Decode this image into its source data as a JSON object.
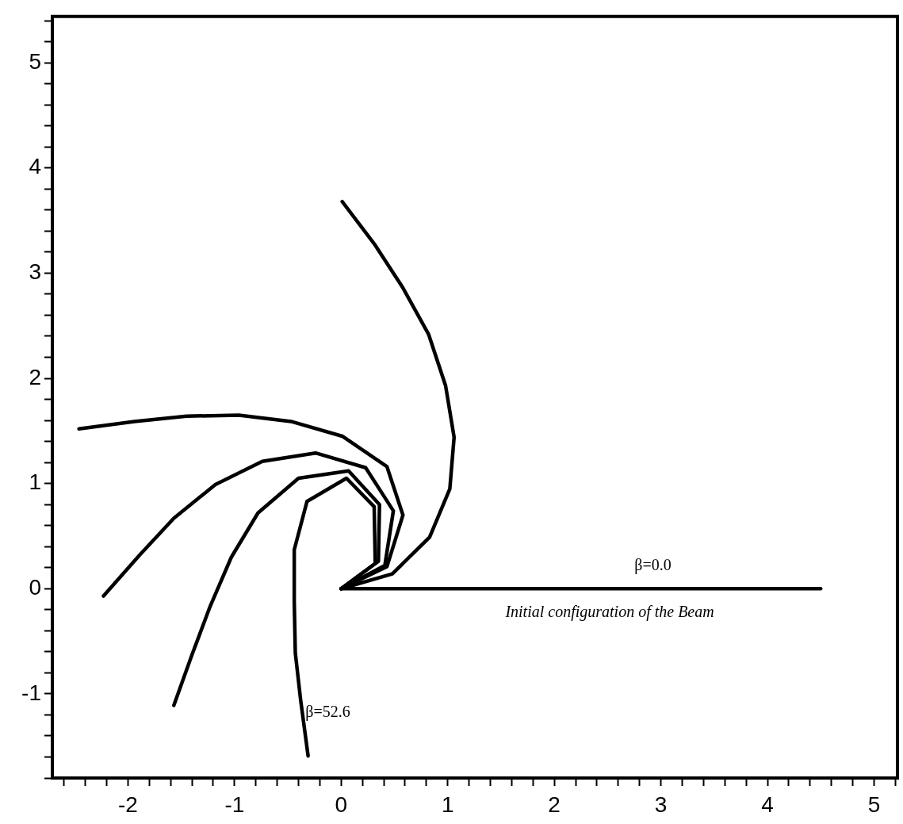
{
  "chart_data": {
    "type": "line",
    "series": [
      {
        "color": "#000000",
        "x": [
          0,
          4.5
        ],
        "values": [
          0,
          0
        ]
      },
      {
        "color": "#000000",
        "x": [
          0,
          0.48,
          0.83,
          1.02,
          1.06,
          0.98,
          0.82,
          0.58,
          0.31,
          0.01
        ],
        "values": [
          0,
          0.14,
          0.49,
          0.95,
          1.44,
          1.93,
          2.42,
          2.86,
          3.28,
          3.68
        ]
      },
      {
        "color": "#000000",
        "x": [
          0,
          0.43,
          0.58,
          0.43,
          0.01,
          -0.47,
          -0.96,
          -1.45,
          -1.94,
          -2.46
        ],
        "values": [
          0,
          0.21,
          0.7,
          1.16,
          1.45,
          1.59,
          1.65,
          1.64,
          1.59,
          1.52
        ]
      },
      {
        "color": "#000000",
        "x": [
          0,
          0.41,
          0.49,
          0.23,
          -0.24,
          -0.74,
          -1.18,
          -1.57,
          -1.89,
          -2.23
        ],
        "values": [
          0,
          0.22,
          0.74,
          1.15,
          1.29,
          1.21,
          0.99,
          0.67,
          0.32,
          -0.07
        ]
      },
      {
        "color": "#000000",
        "x": [
          0,
          0.35,
          0.36,
          0.07,
          -0.4,
          -0.78,
          -1.03,
          -1.23,
          -1.4,
          -1.57
        ],
        "values": [
          0,
          0.26,
          0.8,
          1.12,
          1.05,
          0.72,
          0.3,
          -0.17,
          -0.63,
          -1.11
        ]
      },
      {
        "color": "#000000",
        "x": [
          0,
          0.32,
          0.31,
          0.05,
          -0.32,
          -0.44,
          -0.44,
          -0.43,
          -0.38,
          -0.31
        ],
        "values": [
          0,
          0.24,
          0.78,
          1.05,
          0.83,
          0.37,
          -0.12,
          -0.61,
          -1.06,
          -1.59
        ]
      }
    ],
    "xlim": [
      -2.71,
      5.22
    ],
    "ylim": [
      -1.8,
      5.44
    ],
    "xticks": [
      {
        "value": -2.6,
        "label": null
      },
      {
        "value": -2.4,
        "label": null
      },
      {
        "value": -2.2,
        "label": null
      },
      -2,
      {
        "value": -1.8,
        "label": null
      },
      {
        "value": -1.6,
        "label": null
      },
      {
        "value": -1.4,
        "label": null
      },
      {
        "value": -1.2,
        "label": null
      },
      -1,
      {
        "value": -0.8,
        "label": null
      },
      {
        "value": -0.6,
        "label": null
      },
      {
        "value": -0.4,
        "label": null
      },
      {
        "value": -0.2,
        "label": null
      },
      0,
      {
        "value": 0.2,
        "label": null
      },
      {
        "value": 0.4,
        "label": null
      },
      {
        "value": 0.6,
        "label": null
      },
      {
        "value": 0.8,
        "label": null
      },
      1,
      {
        "value": 1.2,
        "label": null
      },
      {
        "value": 1.4,
        "label": null
      },
      {
        "value": 1.6,
        "label": null
      },
      {
        "value": 1.8,
        "label": null
      },
      2,
      {
        "value": 2.2,
        "label": null
      },
      {
        "value": 2.4,
        "label": null
      },
      {
        "value": 2.6,
        "label": null
      },
      {
        "value": 2.8,
        "label": null
      },
      3,
      {
        "value": 3.2,
        "label": null
      },
      {
        "value": 3.4,
        "label": null
      },
      {
        "value": 3.6,
        "label": null
      },
      {
        "value": 3.8,
        "label": null
      },
      4,
      {
        "value": 4.2,
        "label": null
      },
      {
        "value": 4.4,
        "label": null
      },
      {
        "value": 4.6,
        "label": null
      },
      {
        "value": 4.8,
        "label": null
      },
      5,
      {
        "value": 5.2,
        "label": null
      }
    ],
    "yticks": [
      {
        "value": -1.8,
        "label": null
      },
      {
        "value": -1.6,
        "label": null
      },
      {
        "value": -1.4,
        "label": null
      },
      {
        "value": -1.2,
        "label": null
      },
      -1,
      {
        "value": -0.8,
        "label": null
      },
      {
        "value": -0.6,
        "label": null
      },
      {
        "value": -0.4,
        "label": null
      },
      {
        "value": -0.2,
        "label": null
      },
      0,
      {
        "value": 0.2,
        "label": null
      },
      {
        "value": 0.4,
        "label": null
      },
      {
        "value": 0.6,
        "label": null
      },
      {
        "value": 0.8,
        "label": null
      },
      1,
      {
        "value": 1.2,
        "label": null
      },
      {
        "value": 1.4,
        "label": null
      },
      {
        "value": 1.6,
        "label": null
      },
      {
        "value": 1.8,
        "label": null
      },
      2,
      {
        "value": 2.2,
        "label": null
      },
      {
        "value": 2.4,
        "label": null
      },
      {
        "value": 2.6,
        "label": null
      },
      {
        "value": 2.8,
        "label": null
      },
      3,
      {
        "value": 3.2,
        "label": null
      },
      {
        "value": 3.4,
        "label": null
      },
      {
        "value": 3.6,
        "label": null
      },
      {
        "value": 3.8,
        "label": null
      },
      4,
      {
        "value": 4.2,
        "label": null
      },
      {
        "value": 4.4,
        "label": null
      },
      {
        "value": 4.6,
        "label": null
      },
      {
        "value": 4.8,
        "label": null
      },
      5,
      {
        "value": 5.2,
        "label": null
      },
      {
        "value": 5.4,
        "label": null
      }
    ],
    "annotations": [
      "β=0.0",
      "Initial configuration of the Beam",
      "β=52.6"
    ],
    "grid": false,
    "legend": false
  }
}
